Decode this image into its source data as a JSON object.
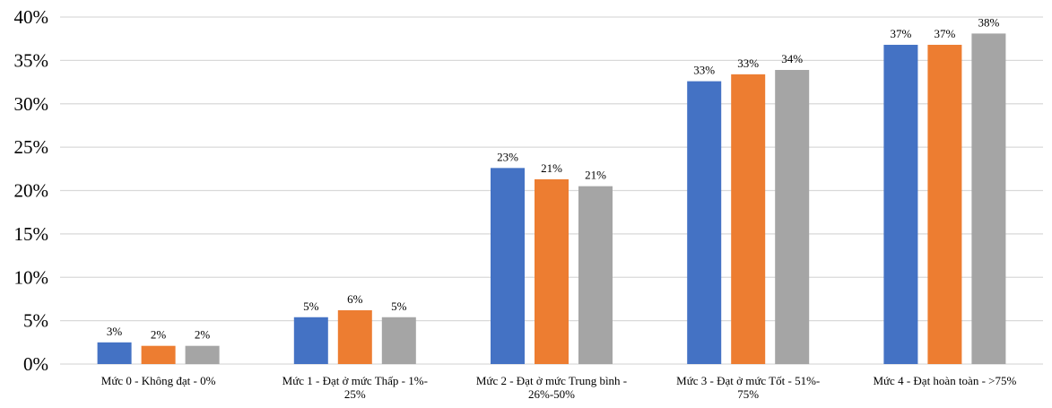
{
  "chart_data": {
    "type": "bar",
    "categories": [
      [
        "Mức 0 - Không đạt - 0%"
      ],
      [
        "Mức 1 - Đạt ở mức Thấp - 1%-",
        "25%"
      ],
      [
        "Mức 2 - Đạt ở mức Trung bình -",
        "26%-50%"
      ],
      [
        "Mức 3 - Đạt ở mức Tốt - 51%-",
        "75%"
      ],
      [
        "Mức 4 - Đạt hoàn toàn - >75%"
      ]
    ],
    "series": [
      {
        "color": "#4472C4",
        "values": [
          0.025,
          0.054,
          0.226,
          0.326,
          0.368
        ],
        "labels": [
          "3%",
          "5%",
          "23%",
          "33%",
          "37%"
        ]
      },
      {
        "color": "#ED7D31",
        "values": [
          0.021,
          0.062,
          0.213,
          0.334,
          0.368
        ],
        "labels": [
          "2%",
          "6%",
          "21%",
          "33%",
          "37%"
        ]
      },
      {
        "color": "#A5A5A5",
        "values": [
          0.021,
          0.054,
          0.205,
          0.339,
          0.381
        ],
        "labels": [
          "2%",
          "5%",
          "21%",
          "34%",
          "38%"
        ]
      }
    ],
    "ylim": [
      0,
      0.4
    ],
    "yticks": [
      {
        "value": 0,
        "label": "0%"
      },
      {
        "value": 0.05,
        "label": "5%"
      },
      {
        "value": 0.1,
        "label": "10%"
      },
      {
        "value": 0.15,
        "label": "15%"
      },
      {
        "value": 0.2,
        "label": "20%"
      },
      {
        "value": 0.25,
        "label": "25%"
      },
      {
        "value": 0.3,
        "label": "30%"
      },
      {
        "value": 0.35,
        "label": "35%"
      },
      {
        "value": 0.4,
        "label": "40%"
      }
    ],
    "grid": true,
    "legend": "none",
    "gridColor": "#D9D9D9"
  }
}
